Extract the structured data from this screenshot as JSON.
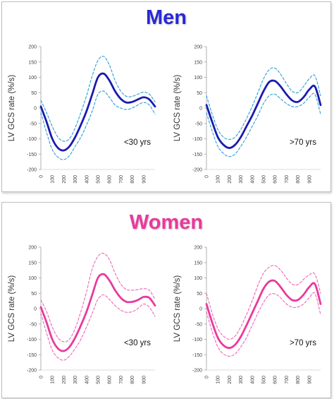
{
  "panels": [
    {
      "title": "Men",
      "title_color": "#2828d8",
      "line_color": "#1a1ab0",
      "band_color": "#2a9fd8",
      "charts": [
        {
          "annotation": "<30 yrs"
        },
        {
          "annotation": ">70 yrs"
        }
      ]
    },
    {
      "title": "Women",
      "title_color": "#e8399e",
      "line_color": "#e8399e",
      "band_color": "#ee66b8",
      "charts": [
        {
          "annotation": "<30 yrs"
        },
        {
          "annotation": ">70 yrs"
        }
      ]
    }
  ],
  "chart_data": [
    {
      "type": "line",
      "panel": "Men",
      "ylabel": "LV GCS rate (%/s)",
      "xlabel": "",
      "annotation": "<30 yrs",
      "ylim": [
        -200,
        200
      ],
      "yticks": [
        -200,
        -150,
        -100,
        -50,
        0,
        50,
        100,
        150,
        200
      ],
      "xlim": [
        0,
        1000
      ],
      "xticks": [
        0,
        100,
        200,
        300,
        400,
        500,
        600,
        700,
        800,
        900
      ],
      "grid": false,
      "x": [
        0,
        50,
        100,
        150,
        200,
        250,
        300,
        350,
        400,
        450,
        500,
        550,
        600,
        650,
        700,
        750,
        800,
        850,
        900,
        950,
        1000
      ],
      "series": [
        {
          "role": "mean",
          "style": "solid",
          "values": [
            5,
            -45,
            -100,
            -130,
            -138,
            -125,
            -95,
            -55,
            -10,
            45,
            100,
            112,
            90,
            55,
            30,
            18,
            20,
            28,
            35,
            28,
            5
          ]
        },
        {
          "role": "upper",
          "style": "dashed",
          "values": [
            25,
            -15,
            -60,
            -95,
            -108,
            -100,
            -65,
            -15,
            40,
            105,
            155,
            168,
            140,
            90,
            55,
            38,
            38,
            45,
            52,
            45,
            20
          ]
        },
        {
          "role": "lower",
          "style": "dashed",
          "values": [
            -15,
            -80,
            -135,
            -160,
            -168,
            -155,
            -125,
            -95,
            -55,
            -10,
            45,
            55,
            35,
            10,
            0,
            -5,
            0,
            10,
            18,
            10,
            -20
          ]
        }
      ]
    },
    {
      "type": "line",
      "panel": "Men",
      "ylabel": "LV GCS rate (%/s)",
      "xlabel": "",
      "annotation": ">70 yrs",
      "ylim": [
        -200,
        200
      ],
      "yticks": [
        -200,
        -150,
        -100,
        -50,
        0,
        50,
        100,
        150,
        200
      ],
      "xlim": [
        0,
        1000
      ],
      "xticks": [
        0,
        100,
        200,
        300,
        400,
        500,
        600,
        700,
        800,
        900
      ],
      "grid": false,
      "x": [
        0,
        50,
        100,
        150,
        200,
        250,
        300,
        350,
        400,
        450,
        500,
        550,
        600,
        650,
        700,
        750,
        800,
        850,
        900,
        950,
        1000
      ],
      "series": [
        {
          "role": "mean",
          "style": "solid",
          "values": [
            10,
            -45,
            -95,
            -120,
            -130,
            -120,
            -95,
            -60,
            -25,
            15,
            55,
            85,
            88,
            70,
            45,
            25,
            20,
            35,
            60,
            70,
            10
          ]
        },
        {
          "role": "upper",
          "style": "dashed",
          "values": [
            40,
            -20,
            -70,
            -95,
            -102,
            -95,
            -70,
            -35,
            5,
            50,
            95,
            125,
            130,
            110,
            80,
            55,
            50,
            70,
            95,
            105,
            40
          ]
        },
        {
          "role": "lower",
          "style": "dashed",
          "values": [
            -15,
            -75,
            -125,
            -148,
            -158,
            -150,
            -125,
            -95,
            -60,
            -25,
            15,
            40,
            45,
            30,
            15,
            5,
            5,
            15,
            35,
            45,
            -20
          ]
        }
      ]
    },
    {
      "type": "line",
      "panel": "Women",
      "ylabel": "LV GCS rate (%/s)",
      "xlabel": "",
      "annotation": "<30 yrs",
      "ylim": [
        -200,
        200
      ],
      "yticks": [
        -200,
        -150,
        -100,
        -50,
        0,
        50,
        100,
        150,
        200
      ],
      "xlim": [
        0,
        1000
      ],
      "xticks": [
        0,
        100,
        200,
        300,
        400,
        500,
        600,
        700,
        800,
        900
      ],
      "grid": false,
      "x": [
        0,
        50,
        100,
        150,
        200,
        250,
        300,
        350,
        400,
        450,
        500,
        550,
        600,
        650,
        700,
        750,
        800,
        850,
        900,
        950,
        1000
      ],
      "series": [
        {
          "role": "mean",
          "style": "solid",
          "values": [
            5,
            -45,
            -100,
            -130,
            -138,
            -125,
            -95,
            -55,
            -10,
            45,
            100,
            112,
            92,
            60,
            35,
            22,
            22,
            28,
            38,
            35,
            10
          ]
        },
        {
          "role": "upper",
          "style": "dashed",
          "values": [
            28,
            -10,
            -60,
            -95,
            -108,
            -100,
            -65,
            -10,
            55,
            130,
            170,
            180,
            160,
            115,
            80,
            62,
            60,
            62,
            65,
            60,
            30
          ]
        },
        {
          "role": "lower",
          "style": "dashed",
          "values": [
            -15,
            -80,
            -135,
            -160,
            -168,
            -155,
            -130,
            -100,
            -60,
            -15,
            30,
            45,
            30,
            10,
            -5,
            -12,
            -10,
            0,
            15,
            5,
            -25
          ]
        }
      ]
    },
    {
      "type": "line",
      "panel": "Women",
      "ylabel": "LV GCS rate (%/s)",
      "xlabel": "",
      "annotation": ">70 yrs",
      "ylim": [
        -200,
        200
      ],
      "yticks": [
        -200,
        -150,
        -100,
        -50,
        0,
        50,
        100,
        150,
        200
      ],
      "xlim": [
        0,
        1000
      ],
      "xticks": [
        0,
        100,
        200,
        300,
        400,
        500,
        600,
        700,
        800,
        900
      ],
      "grid": false,
      "x": [
        0,
        50,
        100,
        150,
        200,
        250,
        300,
        350,
        400,
        450,
        500,
        550,
        600,
        650,
        700,
        750,
        800,
        850,
        900,
        950,
        1000
      ],
      "series": [
        {
          "role": "mean",
          "style": "solid",
          "values": [
            15,
            -45,
            -95,
            -120,
            -128,
            -118,
            -92,
            -55,
            -15,
            25,
            65,
            88,
            90,
            70,
            45,
            28,
            28,
            45,
            70,
            80,
            15
          ]
        },
        {
          "role": "upper",
          "style": "dashed",
          "values": [
            50,
            -15,
            -65,
            -90,
            -100,
            -90,
            -60,
            -20,
            25,
            75,
            115,
            135,
            140,
            125,
            100,
            80,
            78,
            95,
            110,
            112,
            50
          ]
        },
        {
          "role": "lower",
          "style": "dashed",
          "values": [
            -10,
            -75,
            -125,
            -148,
            -155,
            -148,
            -125,
            -95,
            -55,
            -15,
            20,
            45,
            48,
            35,
            15,
            5,
            5,
            15,
            35,
            50,
            -20
          ]
        }
      ]
    }
  ]
}
